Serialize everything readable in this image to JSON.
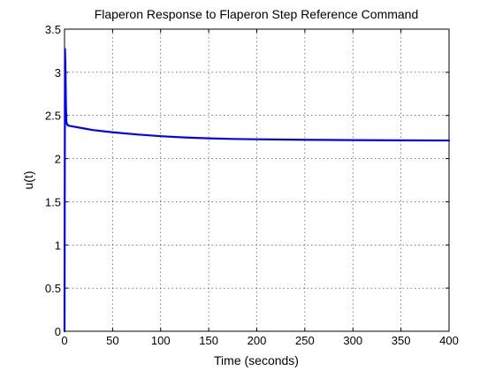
{
  "chart_data": {
    "type": "line",
    "title": "Flaperon Response to Flaperon Step Reference Command",
    "xlabel": "Time (seconds)",
    "ylabel": "u(t)",
    "xlim": [
      0,
      400
    ],
    "ylim": [
      0,
      3.5
    ],
    "xticks": [
      0,
      50,
      100,
      150,
      200,
      250,
      300,
      350,
      400
    ],
    "yticks": [
      0,
      0.5,
      1,
      1.5,
      2,
      2.5,
      3,
      3.5
    ],
    "xtick_labels": [
      "0",
      "50",
      "100",
      "150",
      "200",
      "250",
      "300",
      "350",
      "400"
    ],
    "ytick_labels": [
      "0",
      "0.5",
      "1",
      "1.5",
      "2",
      "2.5",
      "3",
      "3.5"
    ],
    "grid": true,
    "series": [
      {
        "color": "#0000ff",
        "x": [
          0,
          0.2,
          0.5,
          1,
          1.5,
          2,
          3,
          5,
          10,
          20,
          30,
          50,
          75,
          100,
          125,
          150,
          175,
          200,
          250,
          300,
          350,
          400
        ],
        "y": [
          0,
          1.5,
          3.27,
          3.0,
          2.6,
          2.42,
          2.39,
          2.38,
          2.37,
          2.35,
          2.33,
          2.305,
          2.28,
          2.26,
          2.245,
          2.235,
          2.228,
          2.224,
          2.218,
          2.214,
          2.212,
          2.21
        ]
      }
    ]
  }
}
